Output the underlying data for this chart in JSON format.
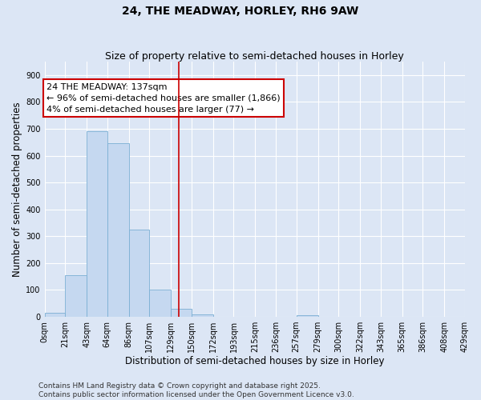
{
  "title": "24, THE MEADWAY, HORLEY, RH6 9AW",
  "subtitle": "Size of property relative to semi-detached houses in Horley",
  "xlabel": "Distribution of semi-detached houses by size in Horley",
  "ylabel": "Number of semi-detached properties",
  "footer_line1": "Contains HM Land Registry data © Crown copyright and database right 2025.",
  "footer_line2": "Contains public sector information licensed under the Open Government Licence v3.0.",
  "annotation_line1": "24 THE MEADWAY: 137sqm",
  "annotation_line2": "← 96% of semi-detached houses are smaller (1,866)",
  "annotation_line3": "4% of semi-detached houses are larger (77) →",
  "property_size": 137,
  "bin_edges": [
    0,
    21,
    43,
    64,
    86,
    107,
    129,
    150,
    172,
    193,
    215,
    236,
    257,
    279,
    300,
    322,
    343,
    365,
    386,
    408,
    429
  ],
  "bin_labels": [
    "0sqm",
    "21sqm",
    "43sqm",
    "64sqm",
    "86sqm",
    "107sqm",
    "129sqm",
    "150sqm",
    "172sqm",
    "193sqm",
    "215sqm",
    "236sqm",
    "257sqm",
    "279sqm",
    "300sqm",
    "322sqm",
    "343sqm",
    "365sqm",
    "386sqm",
    "408sqm",
    "429sqm"
  ],
  "bar_heights": [
    15,
    155,
    690,
    645,
    325,
    100,
    30,
    10,
    0,
    0,
    0,
    0,
    5,
    0,
    0,
    0,
    0,
    0,
    0,
    0
  ],
  "bar_color": "#c5d8f0",
  "bar_edgecolor": "#7bafd4",
  "vline_color": "#cc0000",
  "vline_x": 137,
  "box_facecolor": "#ffffff",
  "box_edgecolor": "#cc0000",
  "ylim": [
    0,
    950
  ],
  "yticks": [
    0,
    100,
    200,
    300,
    400,
    500,
    600,
    700,
    800,
    900
  ],
  "bg_color": "#dce6f5",
  "plot_bg_color": "#dce6f5",
  "grid_color": "#ffffff",
  "title_fontsize": 10,
  "subtitle_fontsize": 9,
  "axis_label_fontsize": 8.5,
  "tick_fontsize": 7,
  "footer_fontsize": 6.5,
  "annotation_fontsize": 8
}
